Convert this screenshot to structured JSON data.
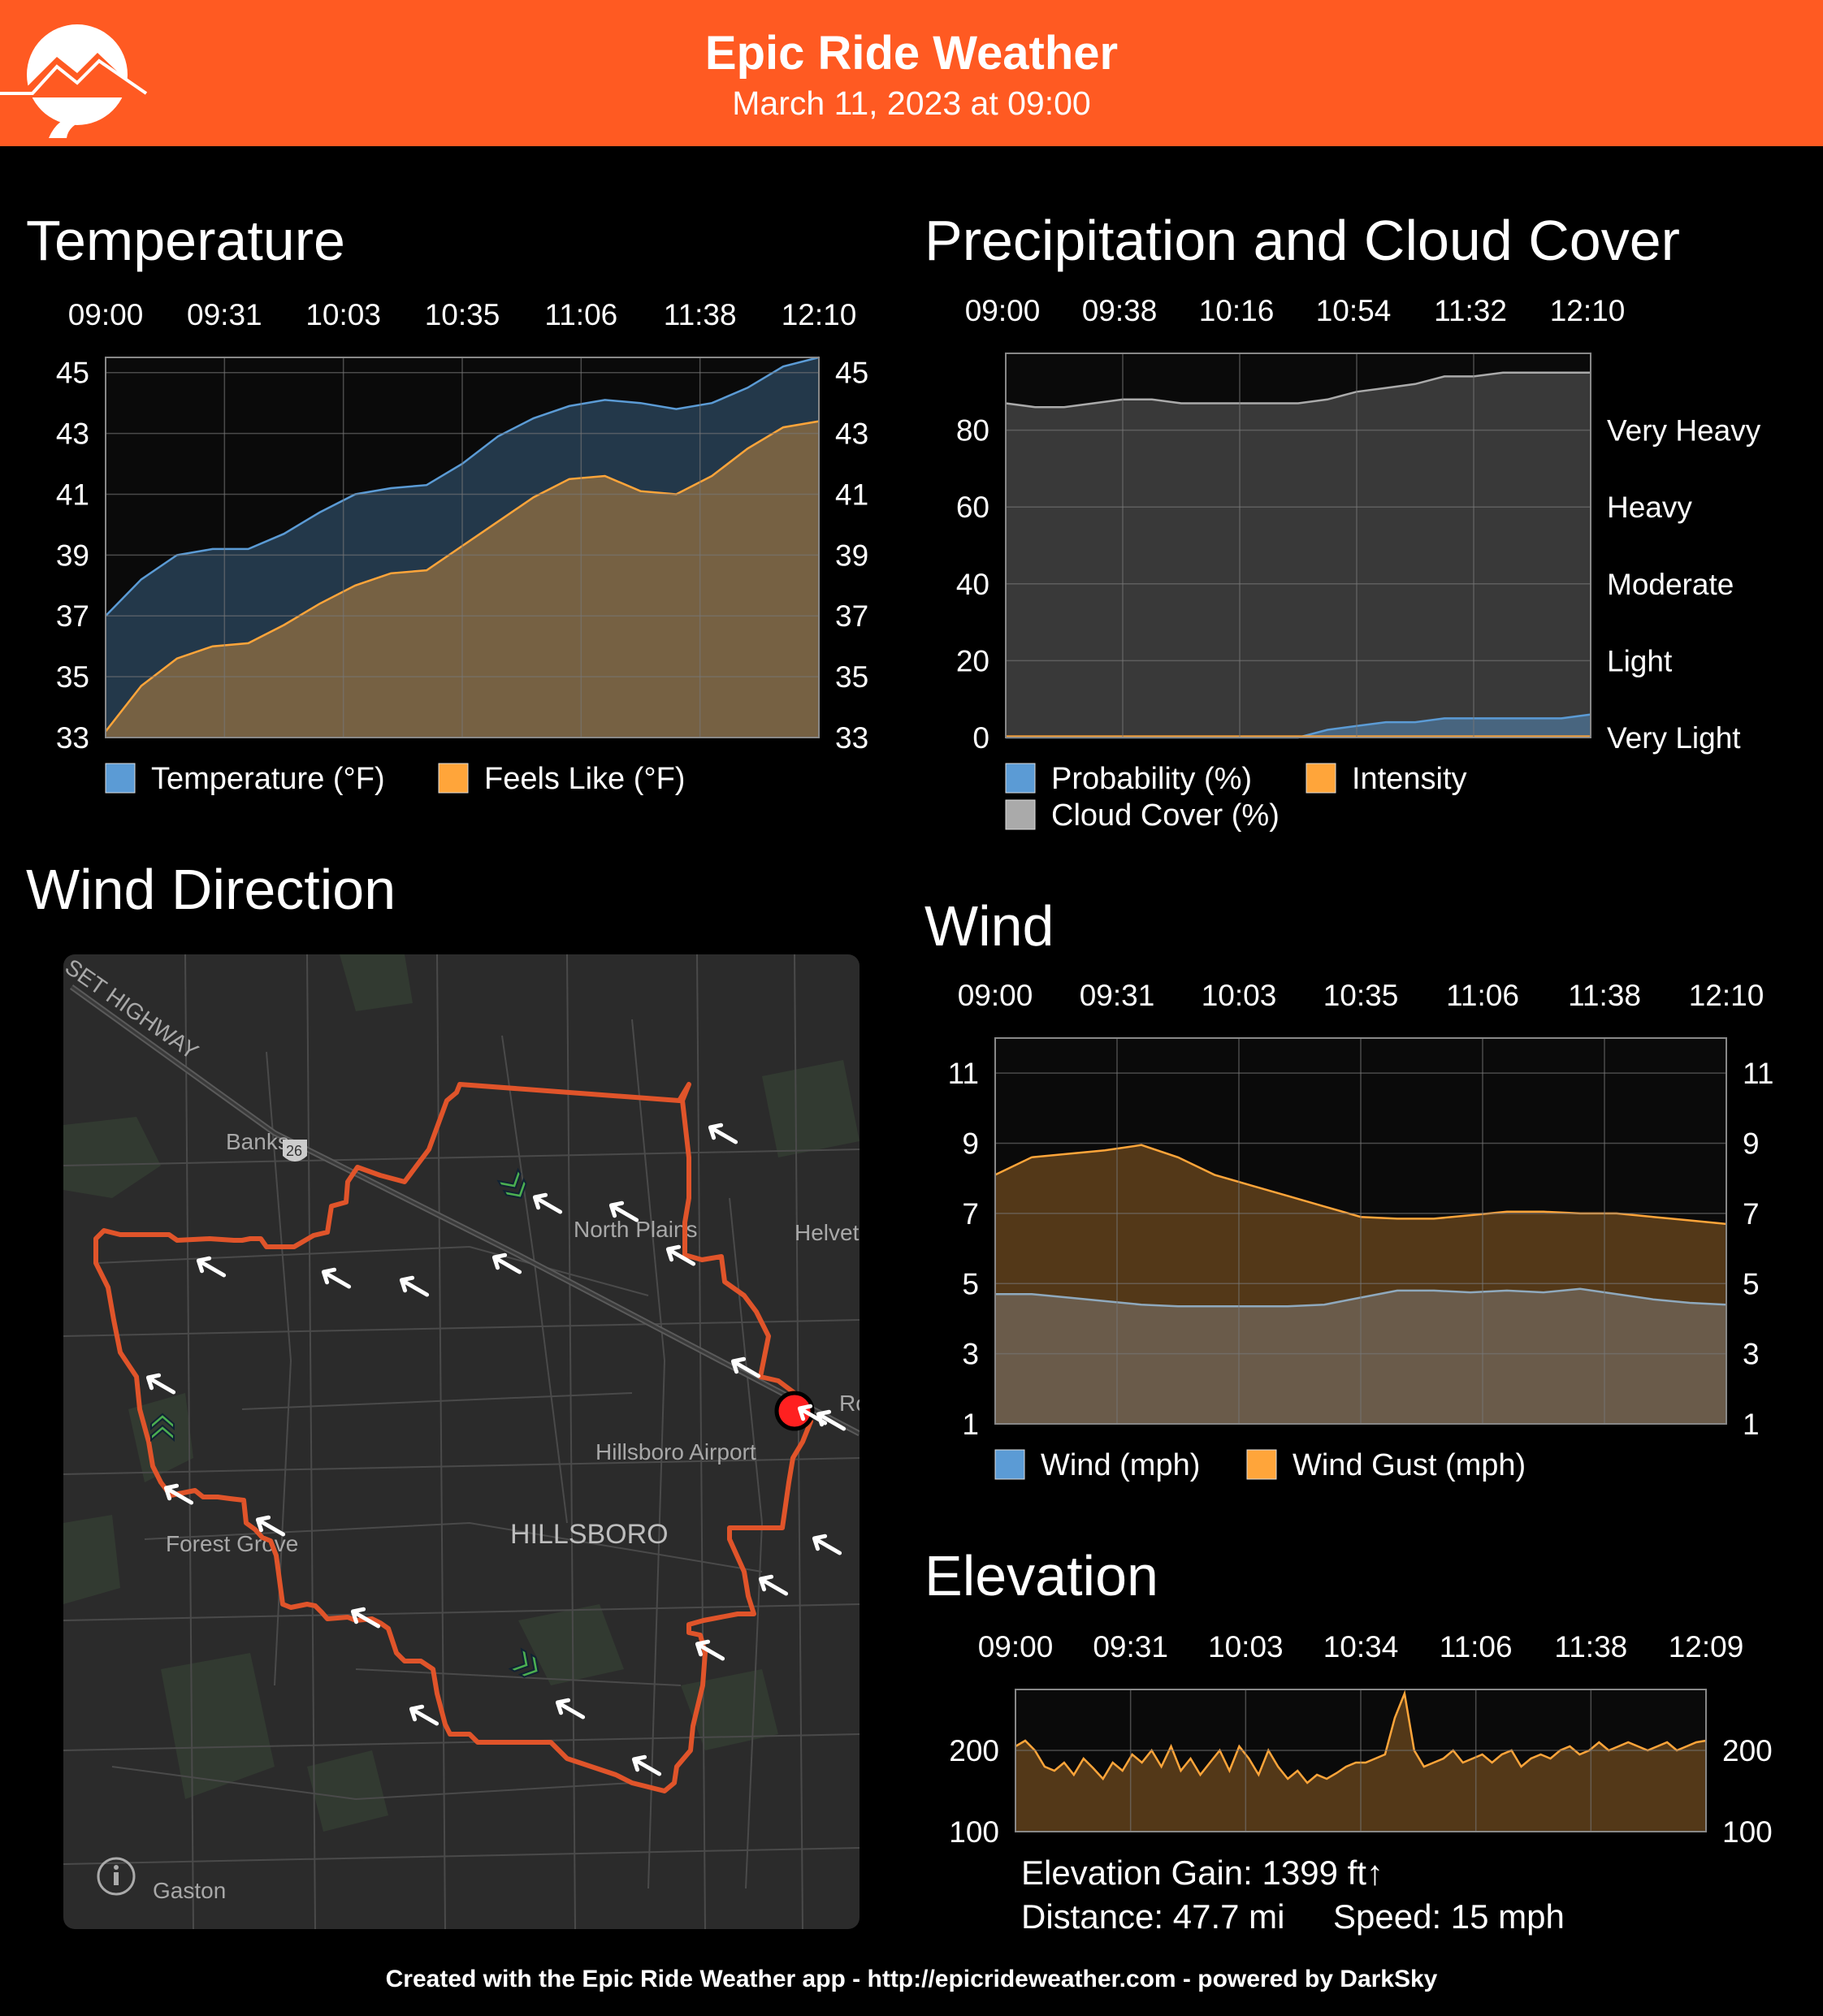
{
  "header": {
    "title": "Epic Ride Weather",
    "subtitle": "March 11, 2023 at 09:00",
    "accent_color": "#FF5A22",
    "logo_icon": "mountain-road-icon"
  },
  "sections": {
    "temperature": "Temperature",
    "precipitation": "Precipitation and Cloud Cover",
    "wind_direction": "Wind Direction",
    "wind": "Wind",
    "elevation": "Elevation"
  },
  "chart_data": [
    {
      "type": "area",
      "id": "temperature",
      "title": "Temperature",
      "x_ticks": [
        "09:00",
        "09:31",
        "10:03",
        "10:35",
        "11:06",
        "11:38",
        "12:10"
      ],
      "y_ticks": [
        45,
        43,
        41,
        39,
        37,
        35,
        33
      ],
      "ylim": [
        33,
        45.5
      ],
      "grid": true,
      "legend_position": "bottom",
      "series": [
        {
          "name": "Temperature (°F)",
          "color": "#5B9BD5",
          "values": [
            37.0,
            38.2,
            39.0,
            39.2,
            39.2,
            39.7,
            40.4,
            41.0,
            41.2,
            41.3,
            42.0,
            42.9,
            43.5,
            43.9,
            44.1,
            44.0,
            43.8,
            44.0,
            44.5,
            45.2,
            45.5
          ]
        },
        {
          "name": "Feels Like (°F)",
          "color": "#FFA53A",
          "values": [
            33.2,
            34.7,
            35.6,
            36.0,
            36.1,
            36.7,
            37.4,
            38.0,
            38.4,
            38.5,
            39.3,
            40.1,
            40.9,
            41.5,
            41.6,
            41.1,
            41.0,
            41.6,
            42.5,
            43.2,
            43.4
          ]
        }
      ]
    },
    {
      "type": "area",
      "id": "precipitation",
      "title": "Precipitation and Cloud Cover",
      "x_ticks": [
        "09:00",
        "09:38",
        "10:16",
        "10:54",
        "11:32",
        "12:10"
      ],
      "y_ticks_left": [
        80,
        60,
        40,
        20,
        0
      ],
      "y_ticks_right": [
        "Very Heavy",
        "Heavy",
        "Moderate",
        "Light",
        "Very Light"
      ],
      "ylim": [
        0,
        100
      ],
      "grid": true,
      "legend_position": "bottom",
      "series": [
        {
          "name": "Probability (%)",
          "color": "#5B9BD5",
          "values": [
            0,
            0,
            0,
            0,
            0,
            0,
            0,
            0,
            0,
            0,
            0,
            2,
            3,
            4,
            4,
            5,
            5,
            5,
            5,
            5,
            6
          ]
        },
        {
          "name": "Intensity",
          "color": "#FFA53A",
          "values": [
            0.3,
            0.3,
            0.3,
            0.3,
            0.3,
            0.3,
            0.3,
            0.3,
            0.3,
            0.3,
            0.3,
            0.3,
            0.3,
            0.3,
            0.3,
            0.3,
            0.3,
            0.3,
            0.3,
            0.3,
            0.3
          ]
        },
        {
          "name": "Cloud Cover (%)",
          "color": "#AAAAAA",
          "values": [
            87,
            86,
            86,
            87,
            88,
            88,
            87,
            87,
            87,
            87,
            87,
            88,
            90,
            91,
            92,
            94,
            94,
            95,
            95,
            95,
            95
          ]
        }
      ]
    },
    {
      "type": "area",
      "id": "wind",
      "title": "Wind",
      "x_ticks": [
        "09:00",
        "09:31",
        "10:03",
        "10:35",
        "11:06",
        "11:38",
        "12:10"
      ],
      "y_ticks": [
        11,
        9,
        7,
        5,
        3,
        1
      ],
      "ylim": [
        1,
        12
      ],
      "grid": true,
      "legend_position": "bottom",
      "series": [
        {
          "name": "Wind (mph)",
          "color": "#5B9BD5",
          "values": [
            4.7,
            4.7,
            4.6,
            4.5,
            4.4,
            4.35,
            4.35,
            4.35,
            4.35,
            4.4,
            4.6,
            4.8,
            4.8,
            4.75,
            4.8,
            4.75,
            4.85,
            4.7,
            4.55,
            4.45,
            4.4
          ]
        },
        {
          "name": "Wind Gust (mph)",
          "color": "#FFA53A",
          "values": [
            8.1,
            8.6,
            8.7,
            8.8,
            8.95,
            8.6,
            8.1,
            7.8,
            7.5,
            7.2,
            6.9,
            6.85,
            6.85,
            6.95,
            7.05,
            7.05,
            7.0,
            7.0,
            6.9,
            6.8,
            6.7
          ]
        }
      ]
    },
    {
      "type": "area",
      "id": "elevation",
      "title": "Elevation",
      "x_ticks": [
        "09:00",
        "09:31",
        "10:03",
        "10:34",
        "11:06",
        "11:38",
        "12:09"
      ],
      "y_ticks_left": [
        200,
        100
      ],
      "y_ticks_right": [
        200,
        100
      ],
      "ylim": [
        100,
        275
      ],
      "grid": true,
      "series": [
        {
          "name": "Elevation",
          "color": "#FFA53A",
          "values": [
            205,
            212,
            200,
            180,
            175,
            185,
            170,
            190,
            178,
            165,
            185,
            175,
            195,
            185,
            200,
            180,
            205,
            175,
            190,
            170,
            185,
            200,
            175,
            205,
            190,
            170,
            200,
            180,
            165,
            175,
            160,
            170,
            165,
            172,
            180,
            185,
            185,
            190,
            195,
            240,
            270,
            200,
            180,
            185,
            190,
            200,
            185,
            190,
            195,
            185,
            195,
            200,
            180,
            190,
            195,
            190,
            200,
            205,
            195,
            200,
            210,
            200,
            205,
            210,
            205,
            200,
            205,
            210,
            200,
            205,
            210,
            212
          ]
        }
      ]
    }
  ],
  "elevation_info": {
    "gain": "Elevation Gain: 1399 ft↑",
    "distance": "Distance: 47.7 mi",
    "speed": "Speed: 15 mph"
  },
  "map": {
    "labels": {
      "highway": "SET HIGHWAY",
      "banks": "Banks",
      "route_shield": "26",
      "north_plains": "North Plains",
      "helvetia": "Helvet",
      "ro": "Ro",
      "airport": "Hillsboro Airport",
      "hillsboro": "HILLSBORO",
      "forest_grove": "Forest Grove",
      "gaston": "Gaston"
    },
    "info_icon": "info-icon",
    "route_color": "#E0542A",
    "wind_arrow_icon": "wind-arrow-icon",
    "climb_icon": "climb-chevron-icon"
  },
  "footer": "Created with the Epic Ride Weather app - http://epicrideweather.com - powered by DarkSky"
}
